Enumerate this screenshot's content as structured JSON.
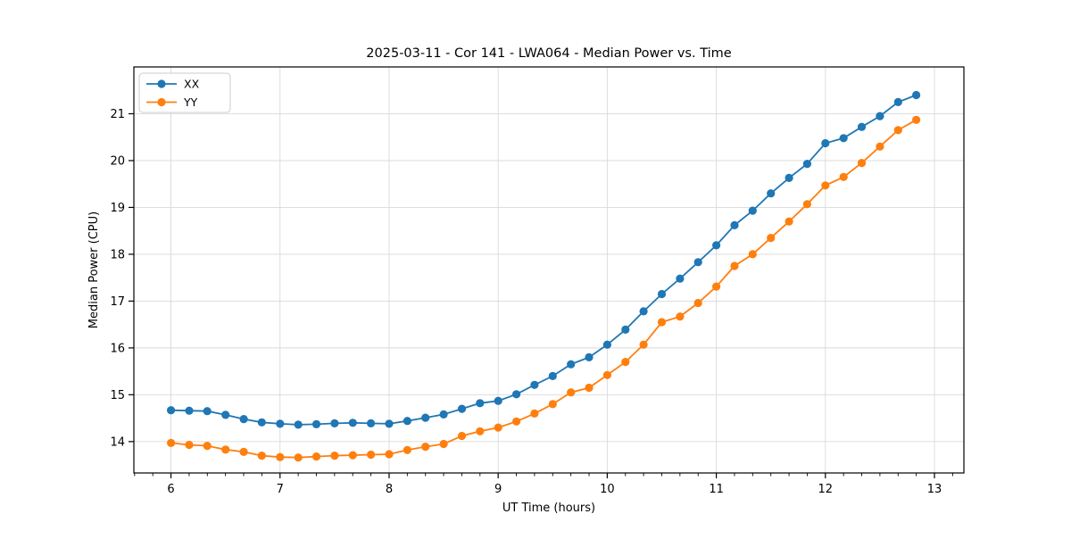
{
  "figure": {
    "background": "#ffffff"
  },
  "chart_data": {
    "type": "line",
    "title": "2025-03-11 - Cor 141 - LWA064 - Median Power vs. Time",
    "xlabel": "UT Time (hours)",
    "ylabel": "Median Power (CPU)",
    "xlim": [
      5.66,
      13.27
    ],
    "ylim": [
      13.33,
      22.0
    ],
    "x_ticks": [
      6,
      7,
      8,
      9,
      10,
      11,
      12,
      13
    ],
    "y_ticks": [
      14,
      15,
      16,
      17,
      18,
      19,
      20,
      21
    ],
    "x_minor_step_hours": 0.1667,
    "grid": true,
    "grid_color": "#d9d9d9",
    "legend_position": "upper left",
    "x": [
      6.0,
      6.167,
      6.333,
      6.5,
      6.667,
      6.833,
      7.0,
      7.167,
      7.333,
      7.5,
      7.667,
      7.833,
      8.0,
      8.167,
      8.333,
      8.5,
      8.667,
      8.833,
      9.0,
      9.167,
      9.333,
      9.5,
      9.667,
      9.833,
      10.0,
      10.167,
      10.333,
      10.5,
      10.667,
      10.833,
      11.0,
      11.167,
      11.333,
      11.5,
      11.667,
      11.833,
      12.0,
      12.167,
      12.333,
      12.5,
      12.667,
      12.833
    ],
    "series": [
      {
        "name": "XX",
        "color": "#1f77b4",
        "values": [
          14.67,
          14.66,
          14.65,
          14.57,
          14.48,
          14.41,
          14.38,
          14.36,
          14.37,
          14.39,
          14.4,
          14.39,
          14.38,
          14.44,
          14.51,
          14.58,
          14.7,
          14.82,
          14.87,
          15.01,
          15.21,
          15.4,
          15.65,
          15.8,
          16.07,
          16.39,
          16.78,
          17.15,
          17.48,
          17.83,
          18.19,
          18.62,
          18.93,
          19.3,
          19.63,
          19.93,
          20.37,
          20.48,
          20.72,
          20.95,
          21.25,
          21.4
        ]
      },
      {
        "name": "YY",
        "color": "#ff7f0e",
        "values": [
          13.97,
          13.93,
          13.91,
          13.83,
          13.78,
          13.7,
          13.67,
          13.66,
          13.68,
          13.7,
          13.71,
          13.72,
          13.73,
          13.82,
          13.89,
          13.95,
          14.12,
          14.22,
          14.3,
          14.43,
          14.6,
          14.8,
          15.05,
          15.15,
          15.42,
          15.7,
          16.07,
          16.55,
          16.67,
          16.96,
          17.31,
          17.75,
          18.0,
          18.35,
          18.7,
          19.07,
          19.47,
          19.65,
          19.95,
          20.3,
          20.65,
          20.87
        ]
      }
    ]
  }
}
